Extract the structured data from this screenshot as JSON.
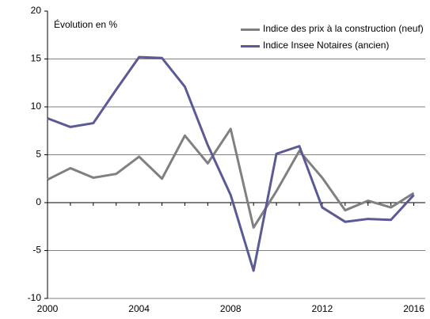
{
  "chart_data": {
    "type": "line",
    "annotation": "Évolution en %",
    "x": [
      2000,
      2001,
      2002,
      2003,
      2004,
      2005,
      2006,
      2007,
      2008,
      2009,
      2010,
      2011,
      2012,
      2013,
      2014,
      2015,
      2016
    ],
    "series": [
      {
        "name": "Indice des prix à la construction (neuf)",
        "color": "#808080",
        "values": [
          2.4,
          3.6,
          2.6,
          3.0,
          4.8,
          2.5,
          7.0,
          4.1,
          7.7,
          -2.6,
          1.2,
          5.4,
          2.6,
          -0.8,
          0.2,
          -0.5,
          1.0
        ]
      },
      {
        "name": "Indice Insee Notaires (ancien)",
        "color": "#5b5a96",
        "values": [
          8.8,
          7.9,
          8.3,
          11.8,
          15.2,
          15.1,
          12.1,
          6.0,
          0.8,
          -7.1,
          5.1,
          5.9,
          -0.5,
          -2.0,
          -1.7,
          -1.8,
          0.8
        ]
      }
    ],
    "xlim": [
      2000,
      2016.5
    ],
    "xticks": [
      2000,
      2004,
      2008,
      2012,
      2016
    ],
    "ylim": [
      -10,
      20
    ],
    "yticks": [
      -10,
      -5,
      0,
      5,
      10,
      15,
      20
    ],
    "grid": true
  }
}
